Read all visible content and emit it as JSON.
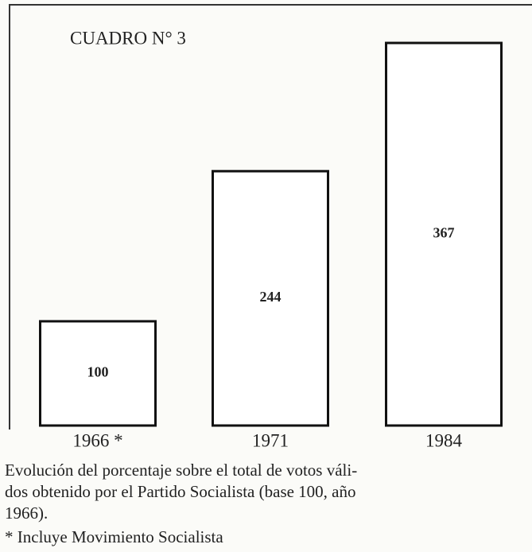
{
  "chart_data": {
    "type": "bar",
    "title": "CUADRO N° 3",
    "categories": [
      "1966 *",
      "1971",
      "1984"
    ],
    "values": [
      100,
      244,
      367
    ],
    "color": "#ffffff",
    "caption": [
      "Evolución del porcentaje sobre el total de votos váli-",
      "dos obtenido por el Partido Socialista (base 100, año",
      "1966)."
    ],
    "footnote": "* Incluye Movimiento Socialista"
  }
}
